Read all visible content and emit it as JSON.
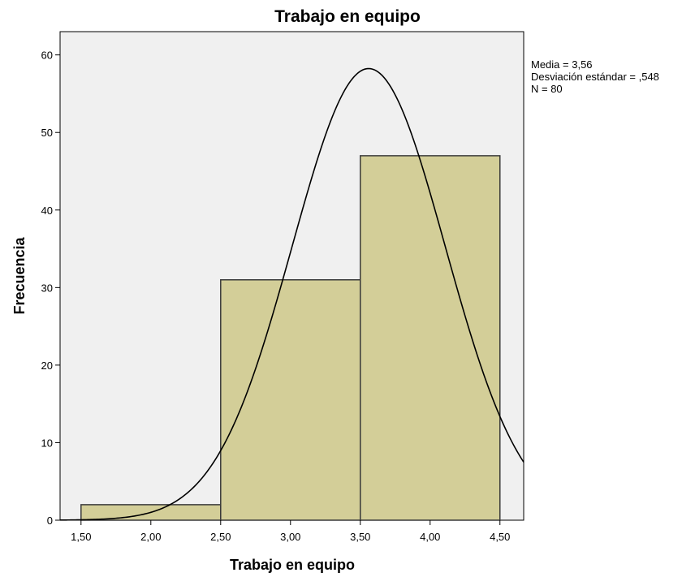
{
  "chart_data": {
    "type": "bar",
    "title": "Trabajo en equipo",
    "xlabel": "Trabajo en equipo",
    "ylabel": "Frecuencia",
    "xlim": [
      1.35,
      4.67
    ],
    "ylim": [
      0,
      63
    ],
    "x_ticks": [
      1.5,
      2.0,
      2.5,
      3.0,
      3.5,
      4.0,
      4.5
    ],
    "x_tick_labels": [
      "1,50",
      "2,00",
      "2,50",
      "3,00",
      "3,50",
      "4,00",
      "4,50"
    ],
    "y_ticks": [
      0,
      10,
      20,
      30,
      40,
      50,
      60
    ],
    "y_tick_labels": [
      "0",
      "10",
      "20",
      "30",
      "40",
      "50",
      "60"
    ],
    "bins": [
      {
        "start": 1.5,
        "end": 2.5,
        "value": 2
      },
      {
        "start": 2.5,
        "end": 3.5,
        "value": 31
      },
      {
        "start": 3.5,
        "end": 4.5,
        "value": 47
      }
    ],
    "normal_curve": {
      "mean": 3.56,
      "sd": 0.548,
      "n": 80,
      "bin_width": 1
    },
    "stats_lines": [
      "Media = 3,56",
      "Desviación estándar = ,548",
      "N = 80"
    ],
    "grid": false,
    "colors": {
      "plot_background": "#f0f0f0",
      "bar_fill": "#d3ce98",
      "bar_stroke": "#3a3a3a",
      "curve": "#000000"
    }
  }
}
